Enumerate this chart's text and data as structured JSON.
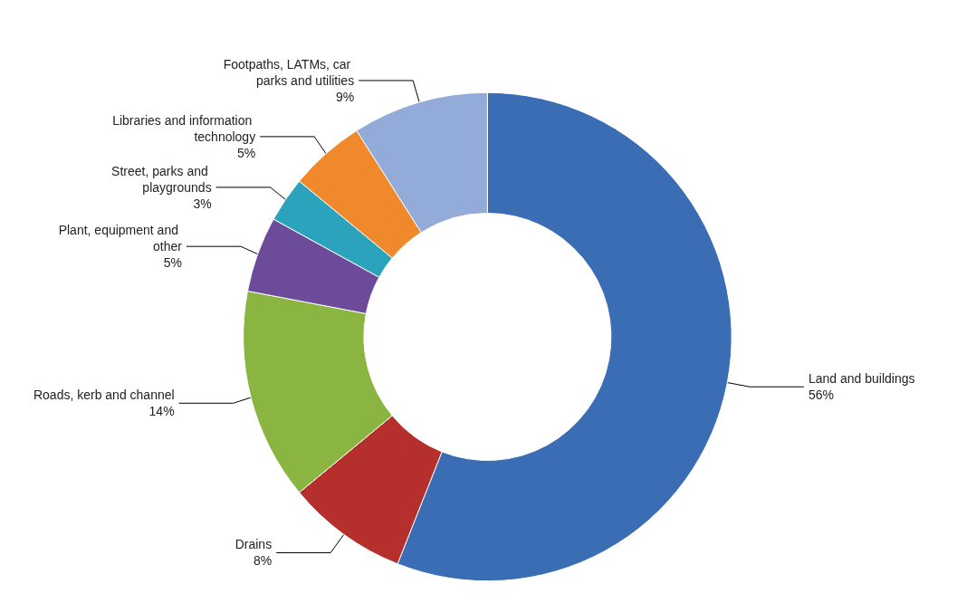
{
  "chart_data": {
    "type": "donut",
    "categories": [
      "Land and buildings",
      "Drains",
      "Roads, kerb and channel",
      "Plant, equipment and other",
      "Street, parks and playgrounds",
      "Libraries and information technology",
      "Footpaths, LATMs, car parks and utilities"
    ],
    "values": [
      56,
      8,
      14,
      5,
      3,
      5,
      9
    ],
    "colors": [
      "#3b6db5",
      "#b5302c",
      "#8ab540",
      "#6b4b9a",
      "#2ca3bd",
      "#f0892b",
      "#93abd8"
    ],
    "value_labels": [
      "56%",
      "8%",
      "14%",
      "5%",
      "3%",
      "5%",
      "9%"
    ],
    "legend": false
  }
}
